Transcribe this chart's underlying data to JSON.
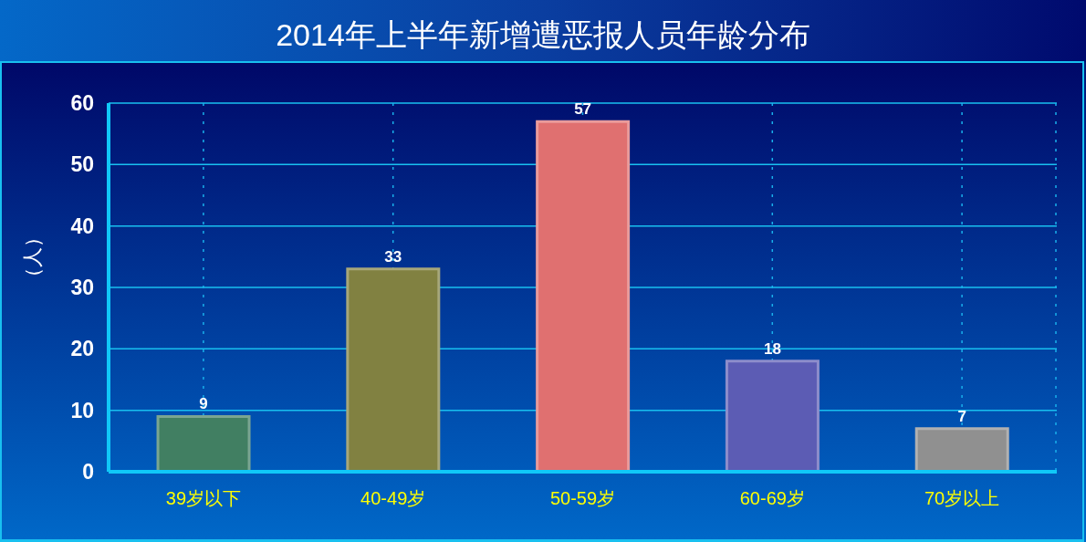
{
  "chart_data": {
    "type": "bar",
    "title": "2014年上半年新增遭恶报人员年龄分布",
    "ylabel": "（人）",
    "categories": [
      "39岁以下",
      "40-49岁",
      "50-59岁",
      "60-69岁",
      "70岁以上"
    ],
    "values": [
      9,
      33,
      57,
      18,
      7
    ],
    "colors": [
      "#417f62",
      "#818141",
      "#e07070",
      "#5c5cb4",
      "#909090"
    ],
    "ylim": [
      0,
      60
    ],
    "yticks": [
      0,
      10,
      20,
      30,
      40,
      50,
      60
    ],
    "grid": true,
    "data_labels": true
  }
}
